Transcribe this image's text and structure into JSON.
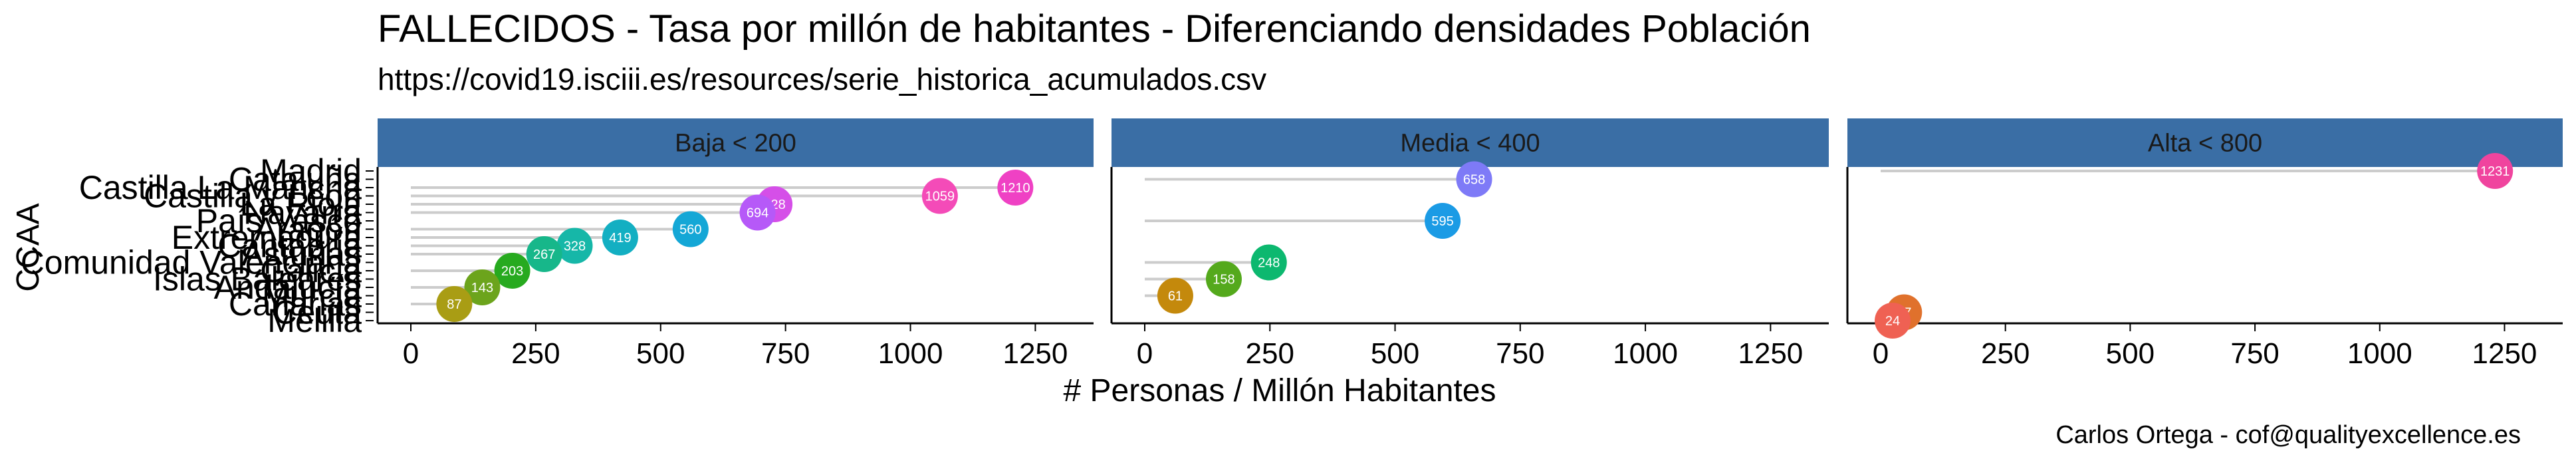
{
  "title": "FALLECIDOS - Tasa por millón de habitantes - Diferenciando densidades Población",
  "subtitle": "https://covid19.isciii.es/resources/serie_historica_acumulados.csv",
  "caption": "Carlos Ortega - cof@qualityexcellence.es",
  "colors": {
    "strip": "#3a6ea5",
    "segment": "#cccccc",
    "axis": "#000000"
  },
  "chart_data": {
    "type": "lollipop",
    "xlabel": "# Personas / Millón Habitantes",
    "ylabel": "CCAA",
    "xlim": [
      0,
      1300
    ],
    "xticks": [
      0,
      250,
      500,
      750,
      1000,
      1250
    ],
    "grid": false,
    "legend": "none",
    "categories": [
      "Melilla",
      "Ceuta",
      "Canarias",
      "Murcia",
      "Andalucía",
      "Islas Baleares",
      "Galicia",
      "Comunidad Valenciana",
      "Asturias",
      "Cantabria",
      "Extremadura",
      "Aragón",
      "País Vasco",
      "Navarra",
      "La Rioja",
      "Castilla y León",
      "Castilla La Mancha",
      "Cataluña",
      "Madrid"
    ],
    "panels": [
      {
        "name": "Baja < 200",
        "points": [
          {
            "ccaa": "Castilla La Mancha",
            "value": 1210,
            "color": "#ef41c4"
          },
          {
            "ccaa": "Castilla y León",
            "value": 1059,
            "color": "#f44bb8"
          },
          {
            "ccaa": "La Rioja",
            "value": 728,
            "color": "#d54fe8"
          },
          {
            "ccaa": "Navarra",
            "value": 694,
            "color": "#b659f8"
          },
          {
            "ccaa": "Aragón",
            "value": 560,
            "color": "#14a7d6"
          },
          {
            "ccaa": "Extremadura",
            "value": 419,
            "color": "#13afc2"
          },
          {
            "ccaa": "Cantabria",
            "value": 328,
            "color": "#16b7a8"
          },
          {
            "ccaa": "Asturias",
            "value": 267,
            "color": "#17b78a"
          },
          {
            "ccaa": "Galicia",
            "value": 203,
            "color": "#27aa1f"
          },
          {
            "ccaa": "Andalucía",
            "value": 143,
            "color": "#6ca41c"
          },
          {
            "ccaa": "Canarias",
            "value": 87,
            "color": "#a99d14"
          }
        ]
      },
      {
        "name": "Media < 400",
        "points": [
          {
            "ccaa": "Cataluña",
            "value": 658,
            "color": "#7e7af7"
          },
          {
            "ccaa": "País Vasco",
            "value": 595,
            "color": "#1b9be5"
          },
          {
            "ccaa": "Comunidad Valenciana",
            "value": 248,
            "color": "#0cb86f"
          },
          {
            "ccaa": "Islas Baleares",
            "value": 158,
            "color": "#54a91c"
          },
          {
            "ccaa": "Murcia",
            "value": 61,
            "color": "#c4890c"
          }
        ]
      },
      {
        "name": "Alta < 800",
        "points": [
          {
            "ccaa": "Madrid",
            "value": 1231,
            "color": "#f0449e"
          },
          {
            "ccaa": "Ceuta",
            "value": 47,
            "color": "#e0712c"
          },
          {
            "ccaa": "Melilla",
            "value": 24,
            "color": "#ef6153"
          }
        ]
      }
    ]
  }
}
